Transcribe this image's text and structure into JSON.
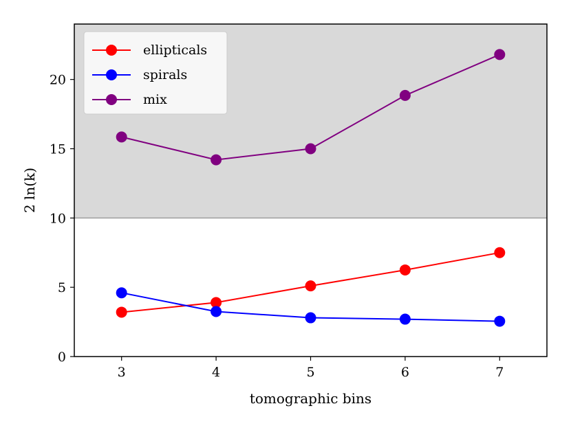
{
  "chart_data": {
    "type": "line",
    "x": [
      3,
      4,
      5,
      6,
      7
    ],
    "xlim": [
      2.5,
      7.5
    ],
    "ylim": [
      0,
      24
    ],
    "xticks": [
      3,
      4,
      5,
      6,
      7
    ],
    "yticks": [
      0,
      5,
      10,
      15,
      20
    ],
    "xlabel": "tomographic bins",
    "ylabel": "2 ln(k)",
    "shaded_region": {
      "y_from": 10,
      "y_to": 24,
      "color": "#d9d9d9"
    },
    "threshold_line": {
      "y": 10,
      "color": "#888888"
    },
    "legend_position": "top-left",
    "grid": false,
    "series": [
      {
        "name": "ellipticals",
        "color": "#ff0000",
        "values": [
          3.2,
          3.9,
          5.1,
          6.25,
          7.5
        ]
      },
      {
        "name": "spirals",
        "color": "#0000ff",
        "values": [
          4.6,
          3.25,
          2.8,
          2.7,
          2.55
        ]
      },
      {
        "name": "mix",
        "color": "#800080",
        "values": [
          15.85,
          14.2,
          15.0,
          18.85,
          21.8
        ]
      }
    ]
  }
}
